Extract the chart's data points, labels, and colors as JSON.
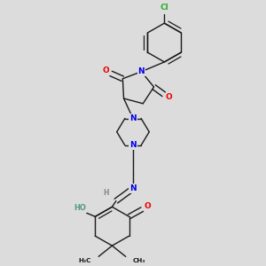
{
  "bg_color": "#dcdcdc",
  "bond_color": "#1a1a1a",
  "N_color": "#0000ee",
  "O_color": "#ee0000",
  "Cl_color": "#33aa33",
  "HO_color": "#559988",
  "H_color": "#888888",
  "font_size_atom": 6.5,
  "font_size_small": 5.5,
  "line_width": 1.0,
  "fig_width": 3.0,
  "fig_height": 3.0,
  "dpi": 100,
  "xlim": [
    0,
    10
  ],
  "ylim": [
    0,
    10
  ]
}
